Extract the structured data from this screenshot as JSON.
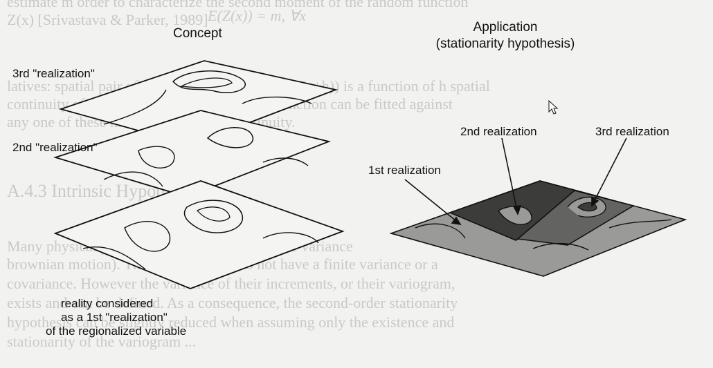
{
  "concept": {
    "title": "Concept",
    "layer3_label": "3rd \"realization\"",
    "layer2_label": "2nd \"realization\"",
    "layer1_label_lines": [
      "reality considered",
      "as a 1st \"realization\"",
      "of the regionalized variable"
    ]
  },
  "application": {
    "title_lines": [
      "Application",
      "(stationarity hypothesis)"
    ],
    "realization_labels": [
      "1st realization",
      "2nd realization",
      "3rd realization"
    ]
  },
  "background_text": {
    "lines": [
      "estimate m order to characterize the second moment of the random function",
      "Z(x) [Srivastava & Parker, 1989]",
      "E(Z(x)) = m,   ∀x",
      "latives: spatial pair of random variables (Z(x), Z(x+h)) is a function of h spatial",
      "continuity of a particular stationary random function can be fitted against",
      "any one of these measures of spatial continuity.",
      "A.4.3  Intrinsic Hypothesis",
      "Many physical phenomena do not adopt a finite variance",
      "brownian motion). These phenomena do not have a finite variance or a",
      "covariance. However the variance of their increments, or their variogram,",
      "exists and can be defined. As a consequence, the second-order stationarity",
      "hypothesis can be slightly reduced when assuming only the existence and",
      "stationarity of the variogram ..."
    ]
  }
}
